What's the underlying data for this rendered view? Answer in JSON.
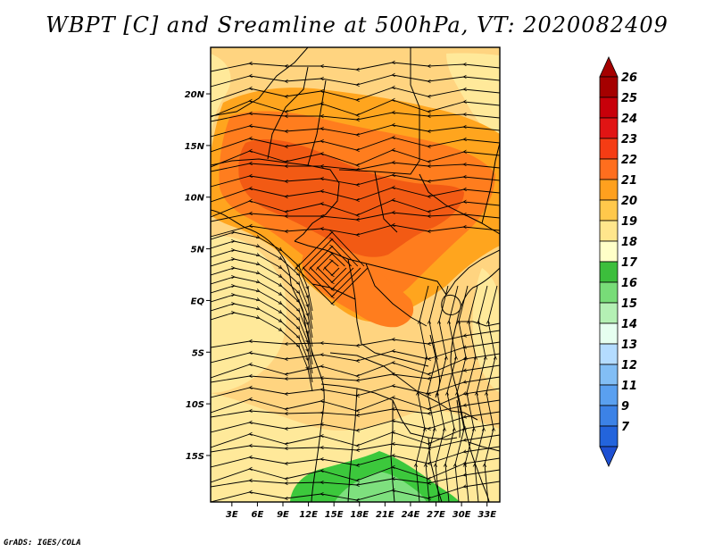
{
  "title": "WBPT [C] and Sreamline at 500hPa, VT: 2020082409",
  "credit": "GrADS: IGES/COLA",
  "map": {
    "lat_range": [
      -19.5,
      24.5
    ],
    "lon_range": [
      0.5,
      34.5
    ],
    "lat_ticks": [
      {
        "value": 20,
        "label": "20N"
      },
      {
        "value": 15,
        "label": "15N"
      },
      {
        "value": 10,
        "label": "10N"
      },
      {
        "value": 5,
        "label": "5N"
      },
      {
        "value": 0,
        "label": "EQ"
      },
      {
        "value": -5,
        "label": "5S"
      },
      {
        "value": -10,
        "label": "10S"
      },
      {
        "value": -15,
        "label": "15S"
      }
    ],
    "lon_ticks": [
      {
        "value": 3,
        "label": "3E"
      },
      {
        "value": 6,
        "label": "6E"
      },
      {
        "value": 9,
        "label": "9E"
      },
      {
        "value": 12,
        "label": "12E"
      },
      {
        "value": 15,
        "label": "15E"
      },
      {
        "value": 18,
        "label": "18E"
      },
      {
        "value": 21,
        "label": "21E"
      },
      {
        "value": 24,
        "label": "24E"
      },
      {
        "value": 27,
        "label": "27E"
      },
      {
        "value": 30,
        "label": "30E"
      },
      {
        "value": 33,
        "label": "33E"
      }
    ],
    "shading_regions": [
      {
        "name": "base-20",
        "color": "#ffd480"
      },
      {
        "name": "north-21",
        "color": "#ffa51e"
      },
      {
        "name": "north-22",
        "color": "#ff7d1e"
      },
      {
        "name": "north-23",
        "color": "#f25a14"
      },
      {
        "name": "central-22",
        "color": "#ff7d1e"
      },
      {
        "name": "south-19",
        "color": "#ffe99a"
      },
      {
        "name": "west-19",
        "color": "#ffe99a"
      },
      {
        "name": "south-18",
        "color": "#3cc83c"
      },
      {
        "name": "south-17",
        "color": "#7ee07e"
      }
    ]
  },
  "colorbar": {
    "levels": [
      {
        "label": "26",
        "color": "#a50000"
      },
      {
        "label": "25",
        "color": "#c8000a"
      },
      {
        "label": "24",
        "color": "#e11414"
      },
      {
        "label": "23",
        "color": "#f53c14"
      },
      {
        "label": "22",
        "color": "#ff6e1e"
      },
      {
        "label": "21",
        "color": "#ffa01e"
      },
      {
        "label": "20",
        "color": "#ffc84b"
      },
      {
        "label": "19",
        "color": "#ffe68c"
      },
      {
        "label": "18",
        "color": "#ffffc8"
      },
      {
        "label": "17",
        "color": "#3cbe3c"
      },
      {
        "label": "16",
        "color": "#78dc78"
      },
      {
        "label": "15",
        "color": "#b4f0b4"
      },
      {
        "label": "14",
        "color": "#e6fff0"
      },
      {
        "label": "13",
        "color": "#b4dcff"
      },
      {
        "label": "12",
        "color": "#82bef5"
      },
      {
        "label": "11",
        "color": "#5aa0f0"
      },
      {
        "label": "9",
        "color": "#3c82e6"
      },
      {
        "label": "7",
        "color": "#2364dc"
      }
    ],
    "tail_color": "#1e50d2"
  },
  "colors": {
    "streamline": "#000000",
    "border": "#000000",
    "frame": "#000000"
  }
}
